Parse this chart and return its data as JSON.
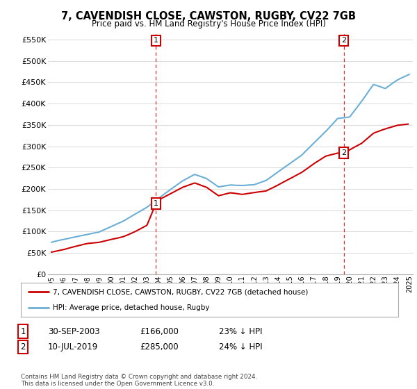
{
  "title": "7, CAVENDISH CLOSE, CAWSTON, RUGBY, CV22 7GB",
  "subtitle": "Price paid vs. HM Land Registry's House Price Index (HPI)",
  "ylabel_ticks": [
    "£0",
    "£50K",
    "£100K",
    "£150K",
    "£200K",
    "£250K",
    "£300K",
    "£350K",
    "£400K",
    "£450K",
    "£500K",
    "£550K"
  ],
  "ytick_vals": [
    0,
    50000,
    100000,
    150000,
    200000,
    250000,
    300000,
    350000,
    400000,
    450000,
    500000,
    550000
  ],
  "ylim": [
    0,
    570000
  ],
  "xlim_start": 1994.7,
  "xlim_end": 2025.3,
  "xtick_years": [
    1995,
    1996,
    1997,
    1998,
    1999,
    2000,
    2001,
    2002,
    2003,
    2004,
    2005,
    2006,
    2007,
    2008,
    2009,
    2010,
    2011,
    2012,
    2013,
    2014,
    2015,
    2016,
    2017,
    2018,
    2019,
    2020,
    2021,
    2022,
    2023,
    2024,
    2025
  ],
  "hpi_color": "#6baed6",
  "price_color": "#cc0000",
  "marker1_date": 2003.75,
  "marker1_price": 166000,
  "marker1_label": "1",
  "marker2_date": 2019.52,
  "marker2_price": 285000,
  "marker2_label": "2",
  "legend_line1": "7, CAVENDISH CLOSE, CAWSTON, RUGBY, CV22 7GB (detached house)",
  "legend_line2": "HPI: Average price, detached house, Rugby",
  "info1_num": "1",
  "info1_date": "30-SEP-2003",
  "info1_price": "£166,000",
  "info1_hpi": "23% ↓ HPI",
  "info2_num": "2",
  "info2_date": "10-JUL-2019",
  "info2_price": "£285,000",
  "info2_hpi": "24% ↓ HPI",
  "footer": "Contains HM Land Registry data © Crown copyright and database right 2024.\nThis data is licensed under the Open Government Licence v3.0.",
  "background_color": "#ffffff",
  "grid_color": "#dddddd"
}
